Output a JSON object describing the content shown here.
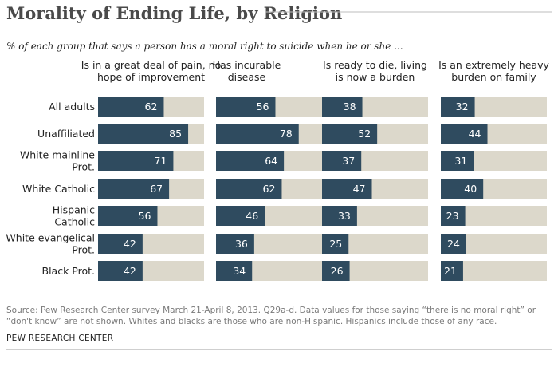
{
  "title": "Morality of Ending Life, by Religion",
  "subtitle": "% of each group that says a person has a moral right to suicide when he or she ...",
  "chart_data": {
    "type": "bar",
    "orientation": "horizontal",
    "stacked_remainder": true,
    "xlim": [
      0,
      100
    ],
    "categories": [
      "All adults",
      "Unaffiliated",
      "White mainline Prot.",
      "White Catholic",
      "Hispanic Catholic",
      "White evangelical Prot.",
      "Black Prot."
    ],
    "series": [
      {
        "name": "Is in a great deal of pain, no hope of improvement",
        "values": [
          62,
          85,
          71,
          67,
          56,
          42,
          42
        ]
      },
      {
        "name": "Has incurable disease",
        "values": [
          56,
          78,
          64,
          62,
          46,
          36,
          34
        ]
      },
      {
        "name": "Is ready to die, living is now a burden",
        "values": [
          38,
          52,
          37,
          47,
          33,
          25,
          26
        ]
      },
      {
        "name": "Is an extremely heavy burden on family",
        "values": [
          32,
          44,
          31,
          40,
          23,
          24,
          21
        ]
      }
    ],
    "colors": {
      "bar": "#2f4b5f",
      "remainder": "#dcd8cb",
      "value_label": "#ffffff"
    }
  },
  "footer": {
    "source": "Source: Pew Research Center survey March 21-April 8, 2013. Q29a-d. Data values for those saying “there is no moral right” or “don't know” are not shown. Whites and blacks are those who are non-Hispanic. Hispanics include those of any race.",
    "org": "PEW RESEARCH CENTER"
  }
}
